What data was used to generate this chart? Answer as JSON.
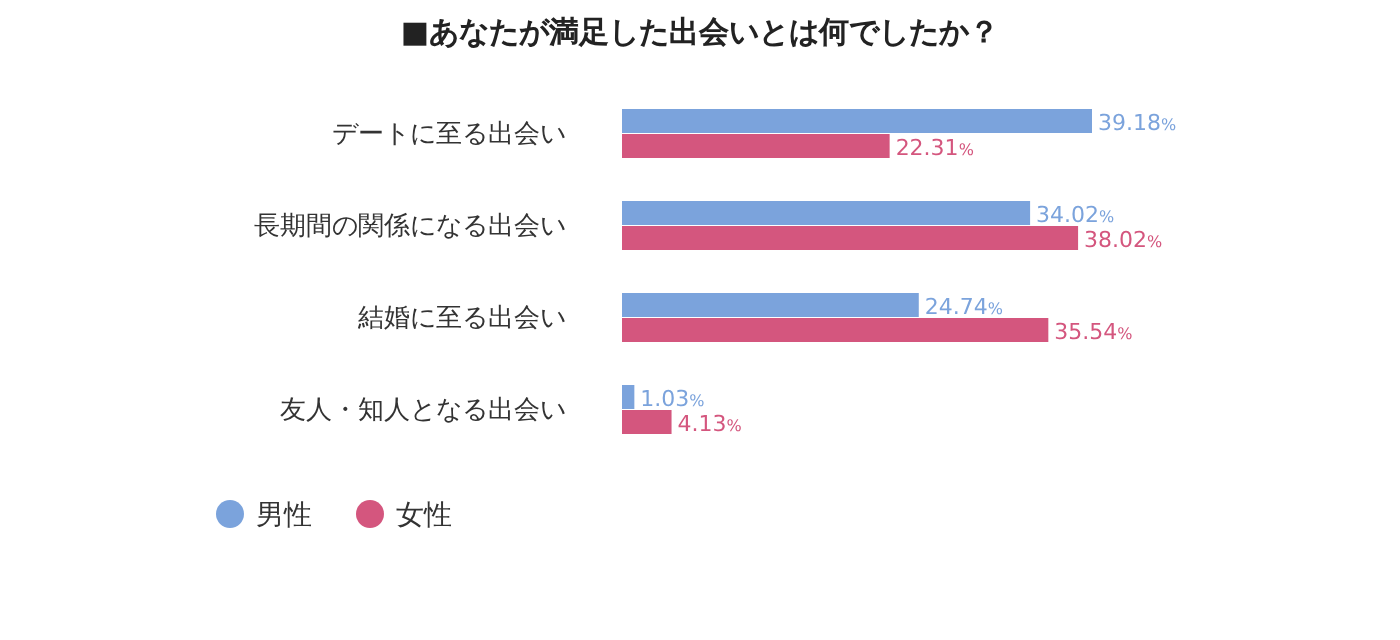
{
  "chart_data": {
    "type": "bar",
    "orientation": "horizontal",
    "title": "■あなたが満足した出会いとは何でしたか？",
    "categories": [
      "デートに至る出会い",
      "長期間の関係になる出会い",
      "結婚に至る出会い",
      "友人・知人となる出会い"
    ],
    "series": [
      {
        "name": "男性",
        "color": "#7ba3dc",
        "values": [
          39.18,
          34.02,
          24.74,
          1.03
        ],
        "value_labels": [
          "39.18%",
          "34.02%",
          "24.74%",
          "1.03%"
        ]
      },
      {
        "name": "女性",
        "color": "#d4567e",
        "values": [
          22.31,
          38.02,
          35.54,
          4.13
        ],
        "value_labels": [
          "22.31%",
          "38.02%",
          "35.54%",
          "4.13%"
        ]
      }
    ],
    "legend": "bottom left"
  }
}
